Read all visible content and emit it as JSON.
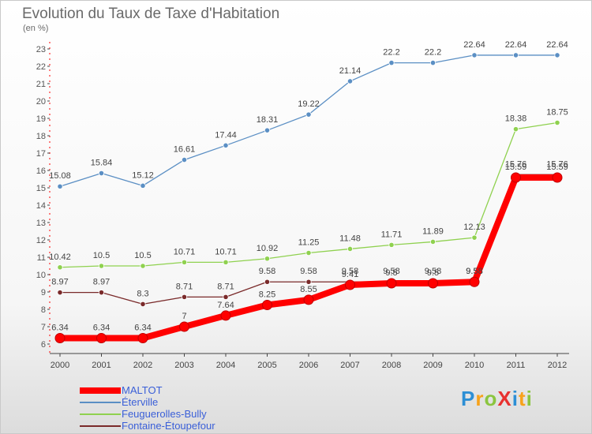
{
  "title": "Evolution du Taux de Taxe d'Habitation",
  "unit_label": "(en %)",
  "logo_text": "ProXiti",
  "chart_data": {
    "type": "line",
    "title": "Evolution du Taux de Taxe d'Habitation",
    "ylabel": "(en %)",
    "xlabel": "",
    "x": [
      "2000",
      "2001",
      "2002",
      "2003",
      "2004",
      "2005",
      "2006",
      "2007",
      "2008",
      "2009",
      "2010",
      "2011",
      "2012"
    ],
    "ylim": [
      6,
      23
    ],
    "y_ticks": [
      6,
      7,
      8,
      9,
      10,
      11,
      12,
      13,
      14,
      15,
      16,
      17,
      18,
      19,
      20,
      21,
      22,
      23
    ],
    "grid": false,
    "legend_position": "bottom-left",
    "series": [
      {
        "name": "MALTOT",
        "color": "#ff0000",
        "values": [
          6.34,
          6.34,
          6.34,
          7,
          7.64,
          8.25,
          8.55,
          9.41,
          9.5,
          9.5,
          9.58,
          15.59,
          15.59
        ],
        "labels": [
          "6.34",
          "6.34",
          "6.34",
          "7",
          "7.64",
          "8.25",
          "8.55",
          "9.41",
          "9.5",
          "9.5",
          "9.58",
          "15.59",
          "15.59"
        ]
      },
      {
        "name": "Éterville",
        "color": "#5b8fc4",
        "values": [
          15.08,
          15.84,
          15.12,
          16.61,
          17.44,
          18.31,
          19.22,
          21.14,
          22.2,
          22.2,
          22.64,
          22.64,
          22.64
        ],
        "labels": [
          "15.08",
          "15.84",
          "15.12",
          "16.61",
          "17.44",
          "18.31",
          "19.22",
          "21.14",
          "22.2",
          "22.2",
          "22.64",
          "22.64",
          "22.64"
        ]
      },
      {
        "name": "Feuguerolles-Bully",
        "color": "#8fd14f",
        "values": [
          10.42,
          10.5,
          10.5,
          10.71,
          10.71,
          10.92,
          11.25,
          11.48,
          11.71,
          11.89,
          12.13,
          18.38,
          18.75
        ],
        "labels": [
          "10.42",
          "10.5",
          "10.5",
          "10.71",
          "10.71",
          "10.92",
          "11.25",
          "11.48",
          "11.71",
          "11.89",
          "12.13",
          "18.38",
          "18.75"
        ]
      },
      {
        "name": "Fontaine-Étoupefour",
        "color": "#7a2a2a",
        "values": [
          8.97,
          8.97,
          8.3,
          8.71,
          8.71,
          9.58,
          9.58,
          9.58,
          9.58,
          9.58,
          9.58,
          15.76,
          15.76
        ],
        "labels": [
          "8.97",
          "8.97",
          "8.3",
          "8.71",
          "8.71",
          "9.58",
          "9.58",
          "9.58",
          "9.58",
          "9.58",
          "9.58",
          "15.76",
          "15.76"
        ]
      }
    ]
  }
}
